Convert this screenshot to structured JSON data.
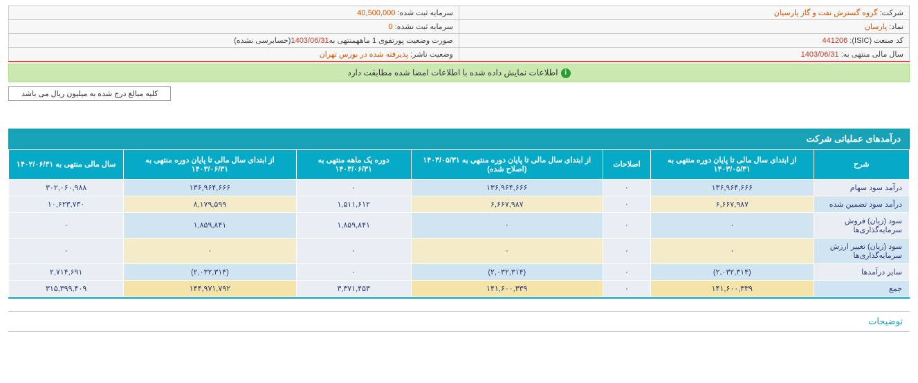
{
  "info": {
    "company_label": "شرکت:",
    "company_value": "گروه گسترش نفت و گاز پارسیان",
    "capital_reg_label": "سرمایه ثبت شده:",
    "capital_reg_value": "40,500,000",
    "symbol_label": "نماد:",
    "symbol_value": "پارسان",
    "capital_unreg_label": "سرمایه ثبت نشده:",
    "capital_unreg_value": "0",
    "isic_label": "کد صنعت (ISIC):",
    "isic_value": "441206",
    "portfolio_label": "صورت وضعیت پورتفوی 1 ماهه",
    "portfolio_mid": "منتهی به",
    "portfolio_date": "1403/06/31",
    "portfolio_suffix": "(حسابرسی نشده)",
    "fiscal_label": "سال مالی منتهی به:",
    "fiscal_value": "1403/06/31",
    "issuer_label": "وضعیت ناشر:",
    "issuer_value": "پذیرفته شده در بورس تهران"
  },
  "info_message": "اطلاعات نمایش داده شده با اطلاعات امضا شده مطابقت دارد",
  "currency_note": "کلیه مبالغ درج شده به میلیون ریال می باشد",
  "section_title": "درآمدهای عملیاتی شرکت",
  "headers": {
    "desc": "شرح",
    "col_b": "از ابتدای سال مالی تا پایان دوره منتهی به ۱۴۰۳/۰۵/۳۱",
    "col_c": "اصلاحات",
    "col_d": "از ابتدای سال مالی تا پایان دوره منتهی به ۱۴۰۳/۰۵/۳۱ (اصلاح شده)",
    "col_e": "دوره یک ماهه منتهی به ۱۴۰۳/۰۶/۳۱",
    "col_f": "از ابتدای سال مالی تا پایان دوره منتهی به ۱۴۰۳/۰۶/۳۱",
    "col_g": "سال مالی منتهی به ۱۴۰۲/۰۶/۳۱"
  },
  "rows": [
    {
      "cls": "row-light",
      "desc": "درآمد سود سهام",
      "b": "۱۳۶,۹۶۴,۶۶۶",
      "c": "۰",
      "d": "۱۳۶,۹۶۴,۶۶۶",
      "e": "۰",
      "f": "۱۳۶,۹۶۴,۶۶۶",
      "g": "۳۰۲,۰۶۰,۹۸۸"
    },
    {
      "cls": "row-cream",
      "desc": "درآمد سود تضمین شده",
      "b": "۶,۶۶۷,۹۸۷",
      "c": "۰",
      "d": "۶,۶۶۷,۹۸۷",
      "e": "۱,۵۱۱,۶۱۲",
      "f": "۸,۱۷۹,۵۹۹",
      "g": "۱۰,۶۲۳,۷۳۰"
    },
    {
      "cls": "row-light",
      "desc": "سود (زیان) فروش سرمایه‌گذاری‌ها",
      "b": "۰",
      "c": "۰",
      "d": "۰",
      "e": "۱,۸۵۹,۸۴۱",
      "f": "۱,۸۵۹,۸۴۱",
      "g": "۰"
    },
    {
      "cls": "row-cream",
      "desc": "سود (زیان) تغییر ارزش سرمایه‌گذاری‌ها",
      "b": "۰",
      "c": "۰",
      "d": "۰",
      "e": "۰",
      "f": "۰",
      "g": "۰"
    },
    {
      "cls": "row-light",
      "desc": "سایر درآمدها",
      "b": "(۲,۰۳۲,۳۱۴)",
      "b_neg": true,
      "c": "۰",
      "d": "(۲,۰۳۲,۳۱۴)",
      "d_neg": true,
      "e": "۰",
      "f": "(۲,۰۳۲,۳۱۴)",
      "f_neg": true,
      "g": "۲,۷۱۴,۶۹۱"
    },
    {
      "cls": "row-sum",
      "desc": "جمع",
      "b": "۱۴۱,۶۰۰,۳۳۹",
      "c": "۰",
      "d": "۱۴۱,۶۰۰,۳۳۹",
      "e": "۳,۳۷۱,۴۵۳",
      "f": "۱۴۴,۹۷۱,۷۹۲",
      "g": "۳۱۵,۳۹۹,۴۰۹"
    }
  ],
  "notes_title": "توضیحات"
}
